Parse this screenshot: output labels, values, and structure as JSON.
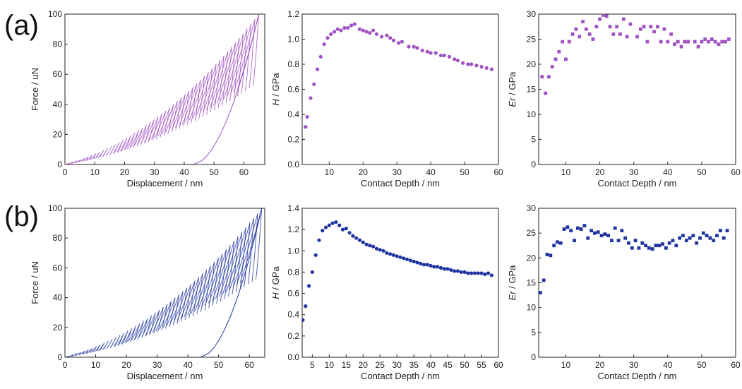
{
  "panel_labels": [
    "(a)",
    "(b)"
  ],
  "colors": {
    "row_a": "#a052c2",
    "row_b": "#2035a0",
    "axes": "#222222"
  },
  "chart_data": [
    {
      "id": "a-force",
      "type": "line",
      "row": 0,
      "col": 0,
      "xlabel": "Displacement / nm",
      "ylabel": "Force / uN",
      "xlim": [
        0,
        67
      ],
      "ylim": [
        0,
        100
      ],
      "xticks": [
        0,
        10,
        20,
        30,
        40,
        50,
        60
      ],
      "yticks": [
        0,
        20,
        40,
        60,
        80,
        100
      ],
      "curve": "cyclic load-unload",
      "envelope_max_displacement": 65,
      "final_unload_end_displacement": 43,
      "series": [
        {
          "values": []
        }
      ]
    },
    {
      "id": "a-hardness",
      "type": "scatter",
      "row": 0,
      "col": 1,
      "xlabel": "Contact Depth / nm",
      "ylabel": "H / GPa",
      "ylabel_italic": "H",
      "xlim": [
        2,
        60
      ],
      "ylim": [
        0,
        1.2
      ],
      "xticks": [
        10,
        20,
        30,
        40,
        50,
        60
      ],
      "yticks": [
        0.0,
        0.2,
        0.4,
        0.6,
        0.8,
        1.0,
        1.2
      ],
      "marker": "circle",
      "x": [
        3.0,
        3.5,
        4.5,
        5.5,
        6.5,
        7.5,
        8.5,
        9.5,
        10.5,
        11.5,
        12.5,
        13.5,
        14.5,
        15.5,
        16.5,
        17.5,
        19,
        20,
        21,
        22,
        23,
        24,
        25.5,
        27,
        28,
        29,
        30.5,
        31.5,
        33.5,
        35,
        36,
        37.5,
        39,
        40,
        41.5,
        43,
        44,
        45.5,
        47,
        48,
        49.5,
        51,
        52,
        53.5,
        55,
        56.5,
        58
      ],
      "y": [
        0.3,
        0.38,
        0.53,
        0.64,
        0.76,
        0.86,
        0.96,
        1.01,
        1.04,
        1.06,
        1.08,
        1.07,
        1.09,
        1.09,
        1.11,
        1.12,
        1.08,
        1.07,
        1.06,
        1.05,
        1.07,
        1.04,
        1.02,
        1.03,
        1.01,
        0.99,
        0.97,
        0.98,
        0.94,
        0.94,
        0.93,
        0.91,
        0.9,
        0.89,
        0.89,
        0.87,
        0.87,
        0.86,
        0.84,
        0.83,
        0.81,
        0.8,
        0.8,
        0.79,
        0.78,
        0.77,
        0.76
      ]
    },
    {
      "id": "a-modulus",
      "type": "scatter",
      "row": 0,
      "col": 2,
      "xlabel": "Contact Depth / nm",
      "ylabel": "Er / GPa",
      "ylabel_italic": "Er",
      "xlim": [
        2,
        60
      ],
      "ylim": [
        0,
        30
      ],
      "xticks": [
        10,
        20,
        30,
        40,
        50,
        60
      ],
      "yticks": [
        0,
        5,
        10,
        15,
        20,
        25,
        30
      ],
      "marker": "square",
      "x": [
        3,
        4,
        5,
        6,
        7,
        8,
        9,
        10,
        11,
        12,
        13,
        14,
        15,
        16,
        17,
        18,
        19,
        20,
        21,
        22,
        23,
        24,
        25,
        26,
        27,
        28,
        29,
        31,
        32,
        33,
        34,
        35,
        36,
        37,
        38,
        39,
        40,
        41,
        42,
        43,
        44,
        45,
        46,
        48,
        49,
        50,
        51,
        52,
        53,
        54,
        55,
        56,
        57,
        58
      ],
      "y": [
        17.5,
        14.2,
        17.5,
        19.5,
        21.0,
        22.5,
        24.5,
        21.0,
        24.5,
        26.0,
        27.0,
        25.5,
        28.5,
        27.0,
        26.0,
        25.0,
        27.5,
        29.0,
        29.8,
        29.6,
        27.5,
        26.0,
        27.5,
        26.0,
        29.0,
        25.5,
        28.0,
        25.5,
        27.0,
        27.5,
        24.5,
        27.5,
        26.5,
        27.5,
        24.5,
        27.0,
        24.5,
        26.0,
        24.0,
        24.5,
        23.5,
        24.5,
        24.5,
        24.5,
        23.5,
        24.5,
        25.0,
        24.5,
        25.0,
        24.5,
        24.0,
        24.5,
        24.5,
        25.0
      ]
    },
    {
      "id": "b-force",
      "type": "line",
      "row": 1,
      "col": 0,
      "xlabel": "Displacement / nm",
      "ylabel": "Force / uN",
      "xlim": [
        0,
        65
      ],
      "ylim": [
        0,
        100
      ],
      "xticks": [
        0,
        10,
        20,
        30,
        40,
        50,
        60
      ],
      "yticks": [
        0,
        20,
        40,
        60,
        80,
        100
      ],
      "curve": "cyclic load-unload",
      "envelope_max_displacement": 64,
      "final_unload_end_displacement": 44,
      "series": [
        {
          "values": []
        }
      ]
    },
    {
      "id": "b-hardness",
      "type": "scatter",
      "row": 1,
      "col": 1,
      "xlabel": "Contact Depth / nm",
      "ylabel": "H / GPa",
      "ylabel_italic": "H",
      "xlim": [
        2,
        60
      ],
      "ylim": [
        0,
        1.4
      ],
      "xticks": [
        5,
        10,
        15,
        20,
        25,
        30,
        35,
        40,
        45,
        50,
        55,
        60
      ],
      "yticks": [
        0.0,
        0.2,
        0.4,
        0.6,
        0.8,
        1.0,
        1.2,
        1.4
      ],
      "marker": "circle",
      "x": [
        2.2,
        3.0,
        4.0,
        5.0,
        6.0,
        7.0,
        8.0,
        9.0,
        10.0,
        11.0,
        12.0,
        13.0,
        14.0,
        15.0,
        16.0,
        17.0,
        18.0,
        19.0,
        20.0,
        21.0,
        22.0,
        23.0,
        24.0,
        25.0,
        26.0,
        27.0,
        28.0,
        29.0,
        30.0,
        31.0,
        32.0,
        33.0,
        34.0,
        35.0,
        36.0,
        37.0,
        38.0,
        39.0,
        40.0,
        41.0,
        42.0,
        43.0,
        44.0,
        45.0,
        46.0,
        47.0,
        48.0,
        49.0,
        50.0,
        51.0,
        52.0,
        53.0,
        54.0,
        55.0,
        56.0,
        57.0,
        58.0
      ],
      "y": [
        0.35,
        0.48,
        0.67,
        0.8,
        0.96,
        1.1,
        1.19,
        1.22,
        1.24,
        1.26,
        1.27,
        1.24,
        1.2,
        1.21,
        1.17,
        1.14,
        1.12,
        1.1,
        1.08,
        1.06,
        1.05,
        1.04,
        1.02,
        1.01,
        1.0,
        0.98,
        0.97,
        0.96,
        0.95,
        0.94,
        0.93,
        0.92,
        0.91,
        0.9,
        0.89,
        0.88,
        0.87,
        0.87,
        0.86,
        0.85,
        0.85,
        0.84,
        0.83,
        0.83,
        0.82,
        0.81,
        0.81,
        0.8,
        0.8,
        0.79,
        0.79,
        0.79,
        0.79,
        0.79,
        0.78,
        0.79,
        0.77
      ]
    },
    {
      "id": "b-modulus",
      "type": "scatter",
      "row": 1,
      "col": 2,
      "xlabel": "Contact Depth / nm",
      "ylabel": "Er / GPa",
      "ylabel_italic": "Er",
      "xlim": [
        2,
        60
      ],
      "ylim": [
        0,
        30
      ],
      "xticks": [
        10,
        20,
        30,
        40,
        50,
        60
      ],
      "yticks": [
        0,
        5,
        10,
        15,
        20,
        25,
        30
      ],
      "marker": "square",
      "x": [
        2.5,
        3.5,
        4.5,
        5.5,
        6.5,
        7.5,
        8.5,
        9.5,
        10.5,
        11.5,
        12.5,
        13.5,
        14.5,
        15.5,
        16.5,
        17.5,
        18.5,
        19.5,
        20.5,
        21.5,
        22.5,
        23.5,
        24.5,
        25.5,
        26.5,
        27.5,
        28.5,
        29.5,
        30.5,
        31.5,
        32.5,
        33.5,
        34.5,
        35.5,
        36.5,
        37.5,
        38.5,
        39.5,
        40.5,
        41.5,
        42.5,
        43.5,
        44.5,
        45.5,
        46.5,
        47.5,
        48.5,
        49.5,
        50.5,
        51.5,
        52.5,
        53.5,
        54.5,
        55.5,
        56.5,
        57.5
      ],
      "y": [
        13.0,
        15.5,
        20.7,
        20.5,
        22.5,
        23.2,
        23.0,
        25.8,
        26.2,
        25.5,
        23.5,
        26.0,
        25.8,
        26.5,
        24.0,
        25.5,
        25.0,
        25.2,
        24.5,
        24.8,
        24.5,
        23.5,
        26.0,
        23.5,
        25.5,
        24.0,
        23.0,
        22.0,
        23.5,
        22.0,
        23.0,
        22.5,
        22.0,
        21.8,
        22.5,
        22.5,
        22.8,
        22.0,
        23.0,
        23.5,
        22.5,
        24.0,
        24.5,
        23.5,
        24.0,
        24.5,
        23.0,
        24.0,
        25.0,
        24.5,
        24.0,
        23.5,
        24.5,
        25.5,
        24.0,
        25.5
      ]
    }
  ]
}
